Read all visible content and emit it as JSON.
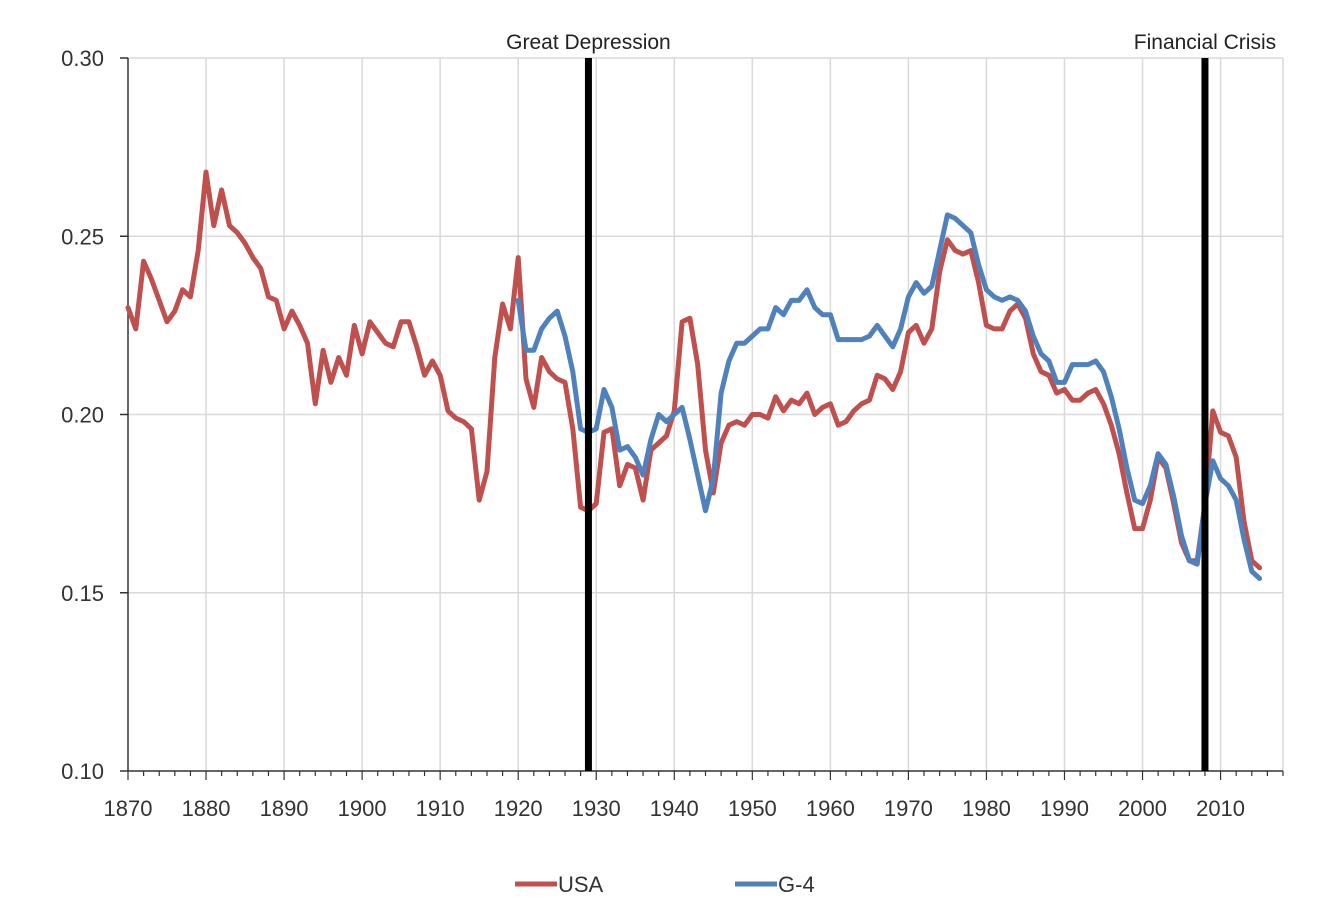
{
  "chart_data": {
    "type": "line",
    "title": "",
    "xlabel": "",
    "ylabel": "",
    "xlim": [
      1870,
      2018
    ],
    "ylim": [
      0.1,
      0.3
    ],
    "grid": true,
    "legend_position": "bottom-center",
    "x_ticks": [
      1870,
      1880,
      1890,
      1900,
      1910,
      1920,
      1930,
      1940,
      1950,
      1960,
      1970,
      1980,
      1990,
      2000,
      2010
    ],
    "y_ticks": [
      "0.10",
      "0.15",
      "0.20",
      "0.25",
      "0.30"
    ],
    "y_tick_values": [
      0.1,
      0.15,
      0.2,
      0.25,
      0.3
    ],
    "events": [
      {
        "year": 1929,
        "label": "Great Depression"
      },
      {
        "year": 2008,
        "label": "Financial Crisis"
      }
    ],
    "series": [
      {
        "name": "USA",
        "color": "#C0504D",
        "points": [
          [
            1870,
            0.23
          ],
          [
            1871,
            0.224
          ],
          [
            1872,
            0.243
          ],
          [
            1873,
            0.238
          ],
          [
            1874,
            0.232
          ],
          [
            1875,
            0.226
          ],
          [
            1876,
            0.229
          ],
          [
            1877,
            0.235
          ],
          [
            1878,
            0.233
          ],
          [
            1879,
            0.246
          ],
          [
            1880,
            0.268
          ],
          [
            1881,
            0.253
          ],
          [
            1882,
            0.263
          ],
          [
            1883,
            0.253
          ],
          [
            1884,
            0.251
          ],
          [
            1885,
            0.248
          ],
          [
            1886,
            0.244
          ],
          [
            1887,
            0.241
          ],
          [
            1888,
            0.233
          ],
          [
            1889,
            0.232
          ],
          [
            1890,
            0.224
          ],
          [
            1891,
            0.229
          ],
          [
            1892,
            0.225
          ],
          [
            1893,
            0.22
          ],
          [
            1894,
            0.203
          ],
          [
            1895,
            0.218
          ],
          [
            1896,
            0.209
          ],
          [
            1897,
            0.216
          ],
          [
            1898,
            0.211
          ],
          [
            1899,
            0.225
          ],
          [
            1900,
            0.217
          ],
          [
            1901,
            0.226
          ],
          [
            1902,
            0.223
          ],
          [
            1903,
            0.22
          ],
          [
            1904,
            0.219
          ],
          [
            1905,
            0.226
          ],
          [
            1906,
            0.226
          ],
          [
            1907,
            0.219
          ],
          [
            1908,
            0.211
          ],
          [
            1909,
            0.215
          ],
          [
            1910,
            0.211
          ],
          [
            1911,
            0.201
          ],
          [
            1912,
            0.199
          ],
          [
            1913,
            0.198
          ],
          [
            1914,
            0.196
          ],
          [
            1915,
            0.176
          ],
          [
            1916,
            0.184
          ],
          [
            1917,
            0.216
          ],
          [
            1918,
            0.231
          ],
          [
            1919,
            0.224
          ],
          [
            1920,
            0.244
          ],
          [
            1921,
            0.21
          ],
          [
            1922,
            0.202
          ],
          [
            1923,
            0.216
          ],
          [
            1924,
            0.212
          ],
          [
            1925,
            0.21
          ],
          [
            1926,
            0.209
          ],
          [
            1927,
            0.196
          ],
          [
            1928,
            0.174
          ],
          [
            1929,
            0.173
          ],
          [
            1930,
            0.175
          ],
          [
            1931,
            0.195
          ],
          [
            1932,
            0.196
          ],
          [
            1933,
            0.18
          ],
          [
            1934,
            0.186
          ],
          [
            1935,
            0.185
          ],
          [
            1936,
            0.176
          ],
          [
            1937,
            0.19
          ],
          [
            1938,
            0.192
          ],
          [
            1939,
            0.194
          ],
          [
            1940,
            0.201
          ],
          [
            1941,
            0.226
          ],
          [
            1942,
            0.227
          ],
          [
            1943,
            0.214
          ],
          [
            1944,
            0.19
          ],
          [
            1945,
            0.178
          ],
          [
            1946,
            0.192
          ],
          [
            1947,
            0.197
          ],
          [
            1948,
            0.198
          ],
          [
            1949,
            0.197
          ],
          [
            1950,
            0.2
          ],
          [
            1951,
            0.2
          ],
          [
            1952,
            0.199
          ],
          [
            1953,
            0.205
          ],
          [
            1954,
            0.201
          ],
          [
            1955,
            0.204
          ],
          [
            1956,
            0.203
          ],
          [
            1957,
            0.206
          ],
          [
            1958,
            0.2
          ],
          [
            1959,
            0.202
          ],
          [
            1960,
            0.203
          ],
          [
            1961,
            0.197
          ],
          [
            1962,
            0.198
          ],
          [
            1963,
            0.201
          ],
          [
            1964,
            0.203
          ],
          [
            1965,
            0.204
          ],
          [
            1966,
            0.211
          ],
          [
            1967,
            0.21
          ],
          [
            1968,
            0.207
          ],
          [
            1969,
            0.212
          ],
          [
            1970,
            0.223
          ],
          [
            1971,
            0.225
          ],
          [
            1972,
            0.22
          ],
          [
            1973,
            0.224
          ],
          [
            1974,
            0.24
          ],
          [
            1975,
            0.249
          ],
          [
            1976,
            0.246
          ],
          [
            1977,
            0.245
          ],
          [
            1978,
            0.246
          ],
          [
            1979,
            0.237
          ],
          [
            1980,
            0.225
          ],
          [
            1981,
            0.224
          ],
          [
            1982,
            0.224
          ],
          [
            1983,
            0.229
          ],
          [
            1984,
            0.231
          ],
          [
            1985,
            0.227
          ],
          [
            1986,
            0.217
          ],
          [
            1987,
            0.212
          ],
          [
            1988,
            0.211
          ],
          [
            1989,
            0.206
          ],
          [
            1990,
            0.207
          ],
          [
            1991,
            0.204
          ],
          [
            1992,
            0.204
          ],
          [
            1993,
            0.206
          ],
          [
            1994,
            0.207
          ],
          [
            1995,
            0.203
          ],
          [
            1996,
            0.197
          ],
          [
            1997,
            0.189
          ],
          [
            1998,
            0.178
          ],
          [
            1999,
            0.168
          ],
          [
            2000,
            0.168
          ],
          [
            2001,
            0.176
          ],
          [
            2002,
            0.188
          ],
          [
            2003,
            0.185
          ],
          [
            2004,
            0.175
          ],
          [
            2005,
            0.164
          ],
          [
            2006,
            0.159
          ],
          [
            2007,
            0.159
          ],
          [
            2008,
            0.175
          ],
          [
            2009,
            0.201
          ],
          [
            2010,
            0.195
          ],
          [
            2011,
            0.194
          ],
          [
            2012,
            0.188
          ],
          [
            2013,
            0.17
          ],
          [
            2014,
            0.159
          ],
          [
            2015,
            0.157
          ]
        ]
      },
      {
        "name": "G-4",
        "color": "#4F81BD",
        "points": [
          [
            1920,
            0.232
          ],
          [
            1921,
            0.218
          ],
          [
            1922,
            0.218
          ],
          [
            1923,
            0.224
          ],
          [
            1924,
            0.227
          ],
          [
            1925,
            0.229
          ],
          [
            1926,
            0.222
          ],
          [
            1927,
            0.212
          ],
          [
            1928,
            0.196
          ],
          [
            1929,
            0.195
          ],
          [
            1930,
            0.196
          ],
          [
            1931,
            0.207
          ],
          [
            1932,
            0.202
          ],
          [
            1933,
            0.19
          ],
          [
            1934,
            0.191
          ],
          [
            1935,
            0.188
          ],
          [
            1936,
            0.183
          ],
          [
            1937,
            0.193
          ],
          [
            1938,
            0.2
          ],
          [
            1939,
            0.198
          ],
          [
            1940,
            0.2
          ],
          [
            1941,
            0.202
          ],
          [
            1942,
            0.193
          ],
          [
            1943,
            0.183
          ],
          [
            1944,
            0.173
          ],
          [
            1945,
            0.182
          ],
          [
            1946,
            0.206
          ],
          [
            1947,
            0.215
          ],
          [
            1948,
            0.22
          ],
          [
            1949,
            0.22
          ],
          [
            1950,
            0.222
          ],
          [
            1951,
            0.224
          ],
          [
            1952,
            0.224
          ],
          [
            1953,
            0.23
          ],
          [
            1954,
            0.228
          ],
          [
            1955,
            0.232
          ],
          [
            1956,
            0.232
          ],
          [
            1957,
            0.235
          ],
          [
            1958,
            0.23
          ],
          [
            1959,
            0.228
          ],
          [
            1960,
            0.228
          ],
          [
            1961,
            0.221
          ],
          [
            1962,
            0.221
          ],
          [
            1963,
            0.221
          ],
          [
            1964,
            0.221
          ],
          [
            1965,
            0.222
          ],
          [
            1966,
            0.225
          ],
          [
            1967,
            0.222
          ],
          [
            1968,
            0.219
          ],
          [
            1969,
            0.224
          ],
          [
            1970,
            0.233
          ],
          [
            1971,
            0.237
          ],
          [
            1972,
            0.234
          ],
          [
            1973,
            0.236
          ],
          [
            1974,
            0.246
          ],
          [
            1975,
            0.256
          ],
          [
            1976,
            0.255
          ],
          [
            1977,
            0.253
          ],
          [
            1978,
            0.251
          ],
          [
            1979,
            0.242
          ],
          [
            1980,
            0.235
          ],
          [
            1981,
            0.233
          ],
          [
            1982,
            0.232
          ],
          [
            1983,
            0.233
          ],
          [
            1984,
            0.232
          ],
          [
            1985,
            0.229
          ],
          [
            1986,
            0.222
          ],
          [
            1987,
            0.217
          ],
          [
            1988,
            0.215
          ],
          [
            1989,
            0.209
          ],
          [
            1990,
            0.209
          ],
          [
            1991,
            0.214
          ],
          [
            1992,
            0.214
          ],
          [
            1993,
            0.214
          ],
          [
            1994,
            0.215
          ],
          [
            1995,
            0.212
          ],
          [
            1996,
            0.205
          ],
          [
            1997,
            0.196
          ],
          [
            1998,
            0.185
          ],
          [
            1999,
            0.176
          ],
          [
            2000,
            0.175
          ],
          [
            2001,
            0.18
          ],
          [
            2002,
            0.189
          ],
          [
            2003,
            0.186
          ],
          [
            2004,
            0.177
          ],
          [
            2005,
            0.166
          ],
          [
            2006,
            0.159
          ],
          [
            2007,
            0.158
          ],
          [
            2008,
            0.175
          ],
          [
            2009,
            0.187
          ],
          [
            2010,
            0.182
          ],
          [
            2011,
            0.18
          ],
          [
            2012,
            0.176
          ],
          [
            2013,
            0.165
          ],
          [
            2014,
            0.156
          ],
          [
            2015,
            0.154
          ]
        ]
      }
    ]
  }
}
